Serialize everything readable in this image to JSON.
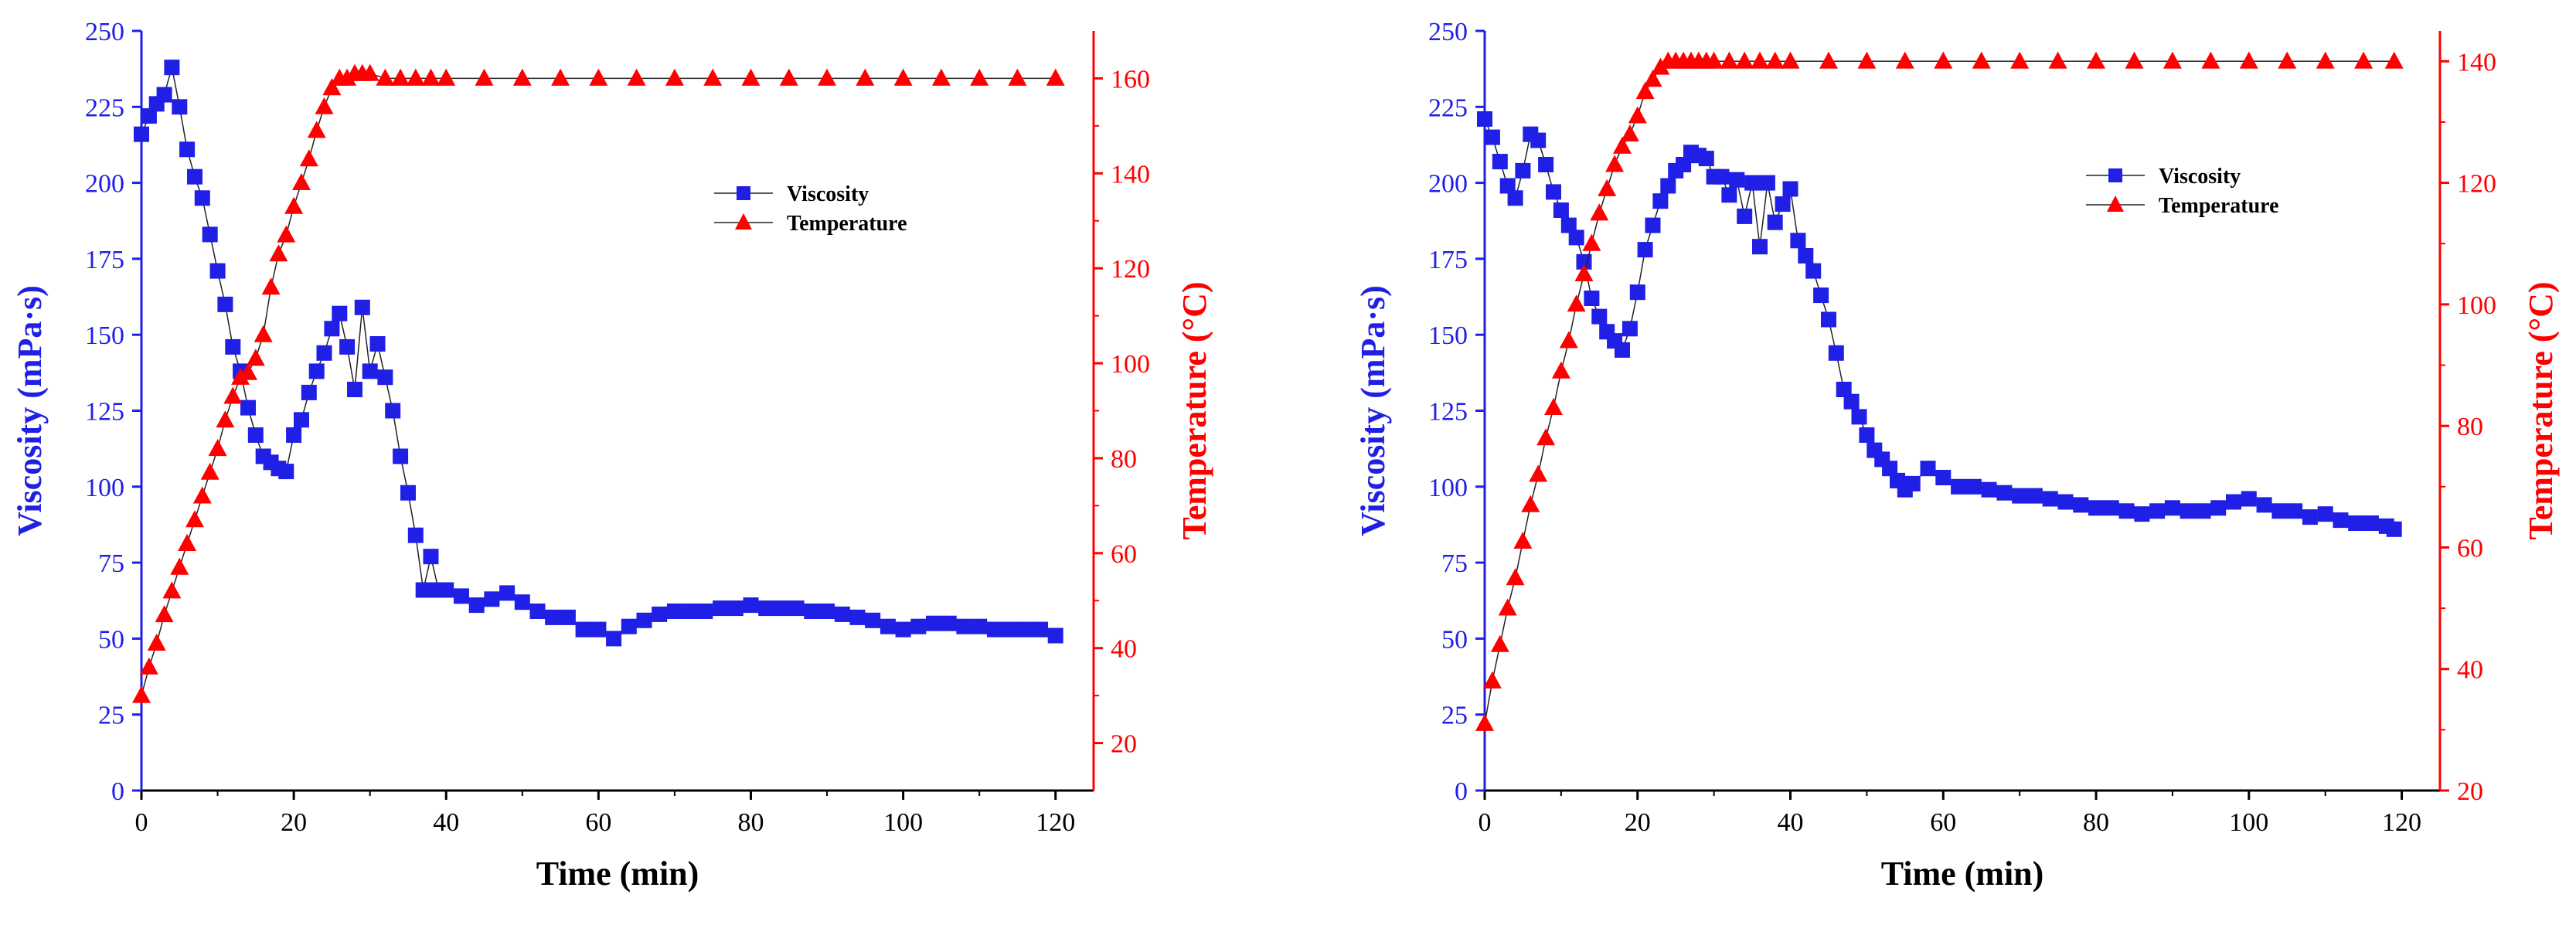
{
  "chart_data": [
    {
      "type": "line",
      "title": "",
      "xlabel": "Time (min)",
      "ylabel_left": "Viscosity (mPa·s)",
      "ylabel_right": "Temperature (°C)",
      "xlim": [
        0,
        125
      ],
      "ylim_left": [
        0,
        250
      ],
      "ylim_right": [
        10,
        170
      ],
      "xticks": [
        0,
        20,
        40,
        60,
        80,
        100,
        120
      ],
      "yticks_left": [
        0,
        25,
        50,
        75,
        100,
        125,
        150,
        175,
        200,
        225,
        250
      ],
      "yticks_right": [
        20,
        40,
        60,
        80,
        100,
        120,
        140,
        160
      ],
      "legend_position": "upper-middle-right",
      "colors": {
        "viscosity": "#1f1fe6",
        "temperature": "#ff0000",
        "axis_left": "#1f1fe6",
        "axis_right": "#ff0000"
      },
      "series": [
        {
          "name": "Viscosity",
          "axis": "left",
          "marker": "square",
          "x": [
            0,
            1,
            2,
            3,
            4,
            5,
            6,
            7,
            8,
            9,
            10,
            11,
            12,
            13,
            14,
            15,
            16,
            17,
            18,
            19,
            20,
            21,
            22,
            23,
            24,
            25,
            26,
            27,
            28,
            29,
            30,
            31,
            32,
            33,
            34,
            35,
            36,
            37,
            38,
            39,
            40,
            42,
            44,
            46,
            48,
            50,
            52,
            54,
            56,
            58,
            60,
            62,
            64,
            66,
            68,
            70,
            72,
            74,
            76,
            78,
            80,
            82,
            84,
            86,
            88,
            90,
            92,
            94,
            96,
            98,
            100,
            102,
            104,
            106,
            108,
            110,
            112,
            114,
            116,
            118,
            120
          ],
          "values": [
            216,
            222,
            226,
            229,
            238,
            225,
            211,
            202,
            195,
            183,
            171,
            160,
            146,
            138,
            126,
            117,
            110,
            108,
            106,
            105,
            117,
            122,
            131,
            138,
            144,
            152,
            157,
            146,
            132,
            159,
            138,
            147,
            136,
            125,
            110,
            98,
            84,
            66,
            77,
            66,
            66,
            64,
            61,
            63,
            65,
            62,
            59,
            57,
            57,
            53,
            53,
            50,
            54,
            56,
            58,
            59,
            59,
            59,
            60,
            60,
            61,
            60,
            60,
            60,
            59,
            59,
            58,
            57,
            56,
            54,
            53,
            54,
            55,
            55,
            54,
            54,
            53,
            53,
            53,
            53,
            51
          ]
        },
        {
          "name": "Temperature",
          "axis": "right",
          "marker": "triangle",
          "x": [
            0,
            1,
            2,
            3,
            4,
            5,
            6,
            7,
            8,
            9,
            10,
            11,
            12,
            13,
            14,
            15,
            16,
            17,
            18,
            19,
            20,
            21,
            22,
            23,
            24,
            25,
            26,
            27,
            28,
            29,
            30,
            32,
            34,
            36,
            38,
            40,
            45,
            50,
            55,
            60,
            65,
            70,
            75,
            80,
            85,
            90,
            95,
            100,
            105,
            110,
            115,
            120
          ],
          "values": [
            30,
            36,
            41,
            47,
            52,
            57,
            62,
            67,
            72,
            77,
            82,
            88,
            93,
            97,
            98,
            101,
            106,
            116,
            123,
            127,
            133,
            138,
            143,
            149,
            154,
            158,
            160,
            160,
            161,
            161,
            161,
            160,
            160,
            160,
            160,
            160,
            160,
            160,
            160,
            160,
            160,
            160,
            160,
            160,
            160,
            160,
            160,
            160,
            160,
            160,
            160,
            160
          ]
        }
      ]
    },
    {
      "type": "line",
      "title": "",
      "xlabel": "Time (min)",
      "ylabel_left": "Viscosity (mPa·s)",
      "ylabel_right": "Temperature (°C)",
      "xlim": [
        0,
        125
      ],
      "ylim_left": [
        0,
        250
      ],
      "ylim_right": [
        20,
        145
      ],
      "xticks": [
        0,
        20,
        40,
        60,
        80,
        100,
        120
      ],
      "yticks_left": [
        0,
        25,
        50,
        75,
        100,
        125,
        150,
        175,
        200,
        225,
        250
      ],
      "yticks_right": [
        20,
        40,
        60,
        80,
        100,
        120,
        140
      ],
      "legend_position": "upper-middle-right",
      "colors": {
        "viscosity": "#1f1fe6",
        "temperature": "#ff0000",
        "axis_left": "#1f1fe6",
        "axis_right": "#ff0000"
      },
      "series": [
        {
          "name": "Viscosity",
          "axis": "left",
          "marker": "square",
          "x": [
            0,
            1,
            2,
            3,
            4,
            5,
            6,
            7,
            8,
            9,
            10,
            11,
            12,
            13,
            14,
            15,
            16,
            17,
            18,
            19,
            20,
            21,
            22,
            23,
            24,
            25,
            26,
            27,
            28,
            29,
            30,
            31,
            32,
            33,
            34,
            35,
            36,
            37,
            38,
            39,
            40,
            41,
            42,
            43,
            44,
            45,
            46,
            47,
            48,
            49,
            50,
            51,
            52,
            53,
            54,
            55,
            56,
            58,
            60,
            62,
            64,
            66,
            68,
            70,
            72,
            74,
            76,
            78,
            80,
            82,
            84,
            86,
            88,
            90,
            92,
            94,
            96,
            98,
            100,
            102,
            104,
            106,
            108,
            110,
            112,
            114,
            116,
            118,
            119
          ],
          "values": [
            221,
            215,
            207,
            199,
            195,
            204,
            216,
            214,
            206,
            197,
            191,
            186,
            182,
            174,
            162,
            156,
            151,
            148,
            145,
            152,
            164,
            178,
            186,
            194,
            199,
            204,
            206,
            210,
            209,
            208,
            202,
            202,
            196,
            201,
            189,
            200,
            179,
            200,
            187,
            193,
            198,
            181,
            176,
            171,
            163,
            155,
            144,
            132,
            128,
            123,
            117,
            112,
            109,
            106,
            102,
            99,
            101,
            106,
            103,
            100,
            100,
            99,
            98,
            97,
            97,
            96,
            95,
            94,
            93,
            93,
            92,
            91,
            92,
            93,
            92,
            92,
            93,
            95,
            96,
            94,
            92,
            92,
            90,
            91,
            89,
            88,
            88,
            87,
            86
          ]
        },
        {
          "name": "Temperature",
          "axis": "right",
          "marker": "triangle",
          "x": [
            0,
            1,
            2,
            3,
            4,
            5,
            6,
            7,
            8,
            9,
            10,
            11,
            12,
            13,
            14,
            15,
            16,
            17,
            18,
            19,
            20,
            21,
            22,
            23,
            24,
            25,
            26,
            27,
            28,
            29,
            30,
            32,
            34,
            36,
            38,
            40,
            45,
            50,
            55,
            60,
            65,
            70,
            75,
            80,
            85,
            90,
            95,
            100,
            105,
            110,
            115,
            119
          ],
          "values": [
            31,
            38,
            44,
            50,
            55,
            61,
            67,
            72,
            78,
            83,
            89,
            94,
            100,
            105,
            110,
            115,
            119,
            123,
            126,
            128,
            131,
            135,
            137,
            139,
            140,
            140,
            140,
            140,
            140,
            140,
            140,
            140,
            140,
            140,
            140,
            140,
            140,
            140,
            140,
            140,
            140,
            140,
            140,
            140,
            140,
            140,
            140,
            140,
            140,
            140,
            140,
            140
          ]
        }
      ]
    }
  ]
}
